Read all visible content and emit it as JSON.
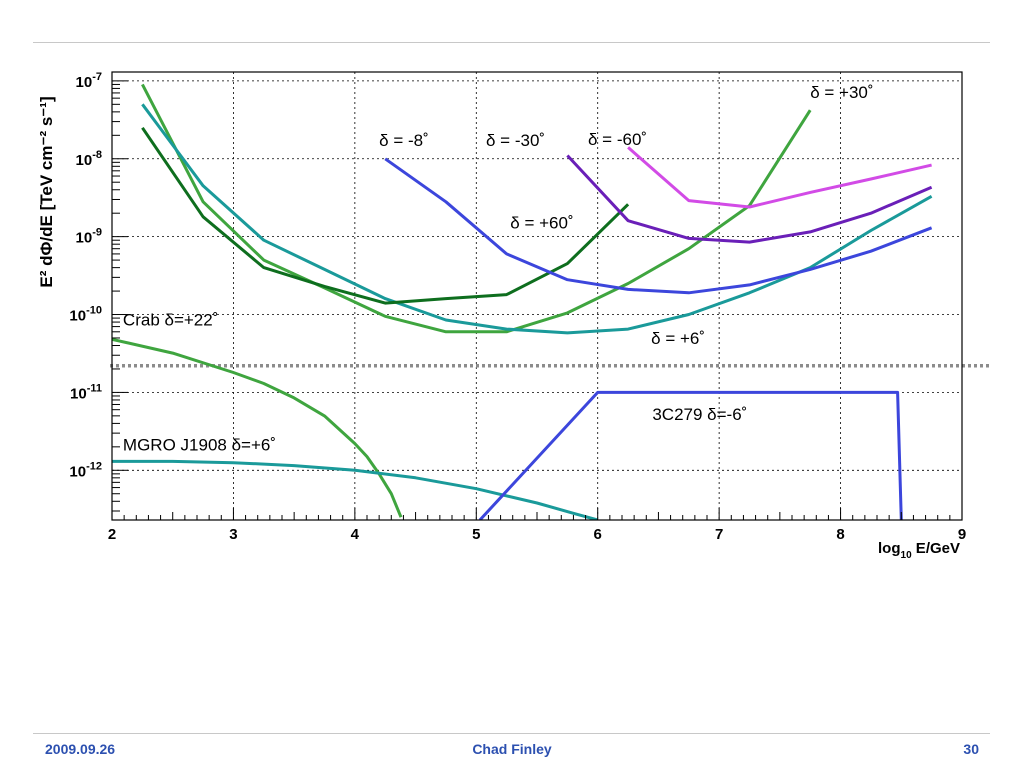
{
  "footer": {
    "date": "2009.09.26",
    "author": "Chad Finley",
    "page": "30"
  },
  "chart_data": {
    "type": "line",
    "x_scale": "linear",
    "y_scale": "log",
    "xlabel_main": "log",
    "xlabel_sub": "10",
    "xlabel_tail": " E/GeV",
    "ylabel": "E² dΦ/dE  [TeV cm⁻² s⁻¹]",
    "xlim": [
      2,
      9
    ],
    "ylim": [
      2.3e-13,
      1.3e-07
    ],
    "x_ticks": [
      "2",
      "3",
      "4",
      "5",
      "6",
      "7",
      "8",
      "9"
    ],
    "y_ticks": [
      {
        "base": "10",
        "exp": "-7"
      },
      {
        "base": "10",
        "exp": "-8"
      },
      {
        "base": "10",
        "exp": "-9"
      },
      {
        "base": "10",
        "exp": "-10"
      },
      {
        "base": "10",
        "exp": "-11"
      },
      {
        "base": "10",
        "exp": "-12"
      }
    ],
    "grid": true,
    "reference_line": {
      "y": 2.2e-11,
      "style": "dotted",
      "color": "#8c8c8c"
    },
    "series": [
      {
        "label": "δ = +30˚",
        "color": "#3fa53f",
        "width": 3,
        "x": [
          2.25,
          2.75,
          3.25,
          3.75,
          4.25,
          4.75,
          5.25,
          5.75,
          6.25,
          6.75,
          7.25,
          7.75
        ],
        "y": [
          9e-08,
          2.8e-09,
          5e-10,
          2.2e-10,
          9.5e-11,
          6e-11,
          6e-11,
          1.05e-10,
          2.5e-10,
          7e-10,
          2.5e-09,
          4.2e-08
        ]
      },
      {
        "label": "δ = +6˚",
        "color": "#1a9a9a",
        "width": 3,
        "x": [
          2.25,
          2.75,
          3.25,
          3.75,
          4.25,
          4.75,
          5.25,
          5.75,
          6.25,
          6.75,
          7.25,
          7.75,
          8.25,
          8.75
        ],
        "y": [
          5e-08,
          4.5e-09,
          9e-10,
          3.8e-10,
          1.6e-10,
          8.5e-11,
          6.5e-11,
          5.8e-11,
          6.5e-11,
          1e-10,
          1.9e-10,
          4e-10,
          1.2e-09,
          3.3e-09
        ]
      },
      {
        "label": "δ = +60˚",
        "color": "#0e6e1e",
        "width": 3,
        "x": [
          2.25,
          2.75,
          3.25,
          3.75,
          4.25,
          4.75,
          5.25,
          5.75,
          6.25
        ],
        "y": [
          2.5e-08,
          1.8e-09,
          4e-10,
          2.3e-10,
          1.4e-10,
          1.6e-10,
          1.8e-10,
          4.5e-10,
          2.6e-09
        ]
      },
      {
        "label": "δ = -8˚",
        "color": "#3c46dc",
        "width": 3,
        "x": [
          4.25,
          4.75,
          5.25,
          5.75,
          6.25,
          6.75,
          7.25,
          7.75,
          8.25,
          8.75
        ],
        "y": [
          1e-08,
          2.8e-09,
          6e-10,
          2.8e-10,
          2.1e-10,
          1.9e-10,
          2.4e-10,
          3.8e-10,
          6.5e-10,
          1.3e-09
        ]
      },
      {
        "label": "δ = -30˚",
        "color": "#6a1fb8",
        "width": 3,
        "x": [
          5.75,
          6.25,
          6.75,
          7.25,
          7.75,
          8.25,
          8.75
        ],
        "y": [
          1.1e-08,
          1.6e-09,
          9.5e-10,
          8.5e-10,
          1.15e-09,
          2e-09,
          4.3e-09
        ]
      },
      {
        "label": "δ = -60˚",
        "color": "#d24be6",
        "width": 3,
        "x": [
          6.25,
          6.75,
          7.25,
          7.75,
          8.25,
          8.75
        ],
        "y": [
          1.4e-08,
          2.9e-09,
          2.4e-09,
          3.7e-09,
          5.5e-09,
          8.3e-09
        ]
      },
      {
        "label": "Crab δ=+22˚",
        "color": "#3fa53f",
        "width": 3,
        "x": [
          2.0,
          2.5,
          3.0,
          3.25,
          3.5,
          3.75,
          4.0,
          4.1,
          4.2,
          4.3,
          4.38
        ],
        "y": [
          4.8e-11,
          3.2e-11,
          1.8e-11,
          1.3e-11,
          8.5e-12,
          5e-12,
          2.2e-12,
          1.5e-12,
          9e-13,
          5e-13,
          2.5e-13
        ]
      },
      {
        "label": "MGRO J1908 δ=+6˚",
        "color": "#1a9a9a",
        "width": 3,
        "x": [
          2.0,
          2.5,
          3.0,
          3.5,
          4.0,
          4.5,
          5.0,
          5.5,
          5.8,
          6.0
        ],
        "y": [
          1.3e-12,
          1.3e-12,
          1.25e-12,
          1.15e-12,
          1e-12,
          8e-13,
          5.8e-13,
          3.8e-13,
          2.8e-13,
          2.3e-13
        ]
      },
      {
        "label": "3C279 δ=-6˚",
        "color": "#3c46dc",
        "width": 3,
        "x": [
          5.03,
          6.0,
          8.47,
          8.5
        ],
        "y": [
          2.3e-13,
          1e-11,
          1e-11,
          2.3e-13
        ]
      }
    ],
    "annotations": [
      {
        "text": "δ = +30˚",
        "x": 7.75,
        "y": 6e-08
      },
      {
        "text": "δ = -8˚",
        "x": 4.2,
        "y": 1.45e-08
      },
      {
        "text": "δ = -30˚",
        "x": 5.08,
        "y": 1.45e-08
      },
      {
        "text": "δ = -60˚",
        "x": 5.92,
        "y": 1.5e-08
      },
      {
        "text": "δ = +60˚",
        "x": 5.28,
        "y": 1.27e-09
      },
      {
        "text": "δ = +6˚",
        "x": 6.44,
        "y": 4.2e-11
      },
      {
        "text": "Crab δ=+22˚",
        "x": 2.09,
        "y": 7.2e-11
      },
      {
        "text": "3C279 δ=-6˚",
        "x": 6.45,
        "y": 4.4e-12
      },
      {
        "text": "MGRO J1908 δ=+6˚",
        "x": 2.09,
        "y": 1.8e-12
      }
    ]
  }
}
